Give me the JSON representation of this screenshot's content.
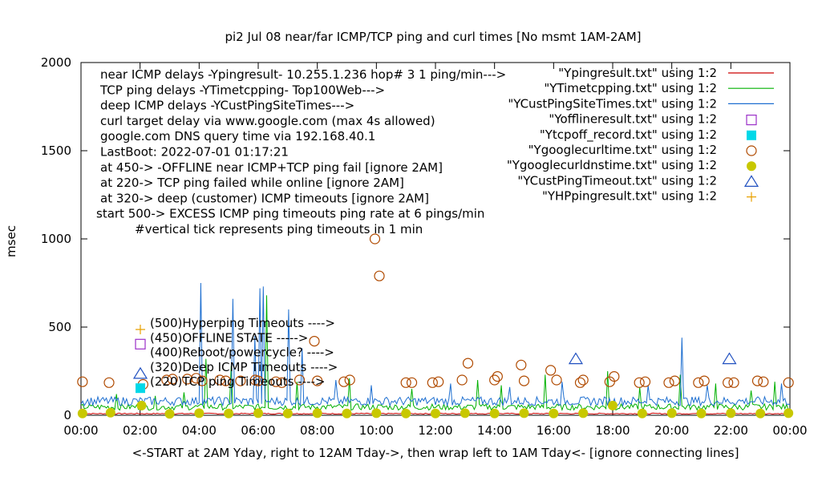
{
  "chart_data": {
    "type": "scatter",
    "title": "pi2  Jul 08  near/far ICMP/TCP ping and curl times [No msmt 1AM-2AM]",
    "xlabel": "<-START at 2AM Yday, right to 12AM Tday->, then wrap left to 1AM Tday<- [ignore connecting lines]",
    "ylabel": "msec",
    "xlim": [
      0,
      24
    ],
    "ylim": [
      0,
      2000
    ],
    "x_ticks": [
      {
        "v": 0,
        "label": "00:00"
      },
      {
        "v": 2,
        "label": "02:00"
      },
      {
        "v": 4,
        "label": "04:00"
      },
      {
        "v": 6,
        "label": "06:00"
      },
      {
        "v": 8,
        "label": "08:00"
      },
      {
        "v": 10,
        "label": "10:00"
      },
      {
        "v": 12,
        "label": "12:00"
      },
      {
        "v": 14,
        "label": "14:00"
      },
      {
        "v": 16,
        "label": "16:00"
      },
      {
        "v": 18,
        "label": "18:00"
      },
      {
        "v": 20,
        "label": "20:00"
      },
      {
        "v": 22,
        "label": "22:00"
      },
      {
        "v": 24,
        "label": "00:00"
      }
    ],
    "y_ticks": [
      {
        "v": 0,
        "label": "0"
      },
      {
        "v": 500,
        "label": "500"
      },
      {
        "v": 1000,
        "label": "1000"
      },
      {
        "v": 1500,
        "label": "1500"
      },
      {
        "v": 2000,
        "label": "2000"
      }
    ],
    "info_lines": [
      "near ICMP delays -Ypingresult- 10.255.1.236 hop# 3 1 ping/min--->",
      "TCP ping delays -YTimetcpping- Top100Web--->",
      "deep ICMP delays -YCustPingSiteTimes--->",
      "curl target delay via www.google.com (max 4s allowed)",
      "google.com DNS query time via 192.168.40.1",
      "LastBoot: 2022-07-01 01:17:21",
      "at 450-> -OFFLINE near ICMP+TCP ping fail [ignore 2AM]",
      "at 220-> TCP ping failed while online [ignore 2AM]",
      "at 320-> deep (customer) ICMP timeouts [ignore 2AM]",
      "start 500-> EXCESS ICMP ping timeouts ping rate at 6 pings/min",
      "#vertical tick represents ping timeouts in 1 min"
    ],
    "legend": [
      {
        "name": "\"Ypingresult.txt\" using 1:2",
        "marker": "line",
        "color": "#cc0000"
      },
      {
        "name": "\"YTimetcpping.txt\" using 1:2",
        "marker": "line",
        "color": "#00b000"
      },
      {
        "name": "\"YCustPingSiteTimes.txt\" using 1:2",
        "marker": "line",
        "color": "#1e6fd0"
      },
      {
        "name": "\"Yofflineresult.txt\" using 1:2",
        "marker": "open-square",
        "color": "#9b30c8"
      },
      {
        "name": "\"Ytcpoff_record.txt\" using 1:2",
        "marker": "filled-square",
        "color": "#00d8e8"
      },
      {
        "name": "\"Ygooglecurltime.txt\" using 1:2",
        "marker": "open-circle",
        "color": "#b04a00"
      },
      {
        "name": "\"Ygooglecurldnstime.txt\" using 1:2",
        "marker": "filled-circle",
        "color": "#c8c800"
      },
      {
        "name": "\"YCustPingTimeout.txt\" using 1:2",
        "marker": "open-triangle",
        "color": "#2050c0"
      },
      {
        "name": "\"YHPpingresult.txt\" using 1:2",
        "marker": "plus",
        "color": "#e8a000"
      }
    ],
    "annotations": [
      {
        "text": "(500)Hyperping Timeouts ---->",
        "marker": "plus",
        "color": "#e8a000"
      },
      {
        "text": "(450)OFFLINE STATE ----->",
        "marker": "open-square",
        "color": "#9b30c8"
      },
      {
        "text": "(400)Reboot/powercycle? ---->",
        "marker": "none",
        "color": "#000000"
      },
      {
        "text": "(320)Deep ICMP Timeouts ---->",
        "marker": "open-triangle",
        "color": "#2050c0"
      },
      {
        "text": "(220)TCP ping Timeouts ---->",
        "marker": "filled-square",
        "color": "#00d8e8"
      }
    ],
    "series": [
      {
        "name": "\"Ypingresult.txt\" using 1:2",
        "color": "#cc0000",
        "style": "line",
        "baseline": 8,
        "noise": 6
      },
      {
        "name": "\"YTimetcpping.txt\" using 1:2",
        "color": "#00b000",
        "style": "line",
        "baseline": 40,
        "noise": 35,
        "spikes": [
          [
            1.2,
            120
          ],
          [
            2.5,
            110
          ],
          [
            3.5,
            130
          ],
          [
            4.2,
            320
          ],
          [
            5.1,
            280
          ],
          [
            6.3,
            680
          ],
          [
            7.3,
            190
          ],
          [
            9.1,
            210
          ],
          [
            11.2,
            150
          ],
          [
            13.4,
            200
          ],
          [
            14.2,
            170
          ],
          [
            15.7,
            230
          ],
          [
            17.8,
            250
          ],
          [
            18.9,
            160
          ],
          [
            20.3,
            230
          ],
          [
            21.5,
            180
          ],
          [
            22.7,
            140
          ],
          [
            23.5,
            190
          ]
        ]
      },
      {
        "name": "\"YCustPingSiteTimes.txt\" using 1:2",
        "color": "#1e6fd0",
        "style": "line",
        "baseline": 70,
        "noise": 50,
        "spikes": [
          [
            4.05,
            750
          ],
          [
            5.15,
            660
          ],
          [
            5.9,
            450
          ],
          [
            6.05,
            720
          ],
          [
            6.15,
            730
          ],
          [
            7.0,
            600
          ],
          [
            7.5,
            380
          ],
          [
            8.6,
            200
          ],
          [
            9.8,
            170
          ],
          [
            12.5,
            180
          ],
          [
            14.5,
            160
          ],
          [
            16.3,
            190
          ],
          [
            19.2,
            170
          ],
          [
            20.35,
            440
          ],
          [
            21.2,
            170
          ],
          [
            23.7,
            180
          ]
        ]
      },
      {
        "name": "\"Ygooglecurltime.txt\" using 1:2",
        "color": "#b04a00",
        "style": "open-circle",
        "points": [
          [
            0.05,
            190
          ],
          [
            0.95,
            185
          ],
          [
            2.1,
            175
          ],
          [
            2.9,
            200
          ],
          [
            3.1,
            205
          ],
          [
            3.6,
            205
          ],
          [
            3.9,
            210
          ],
          [
            4.1,
            195
          ],
          [
            4.7,
            200
          ],
          [
            4.9,
            195
          ],
          [
            5.4,
            195
          ],
          [
            5.9,
            200
          ],
          [
            6.0,
            195
          ],
          [
            6.6,
            190
          ],
          [
            6.8,
            185
          ],
          [
            7.4,
            200
          ],
          [
            7.9,
            420
          ],
          [
            8.0,
            195
          ],
          [
            8.9,
            190
          ],
          [
            9.1,
            200
          ],
          [
            9.95,
            1000
          ],
          [
            10.1,
            790
          ],
          [
            11.0,
            185
          ],
          [
            11.2,
            185
          ],
          [
            11.9,
            185
          ],
          [
            12.1,
            190
          ],
          [
            12.9,
            200
          ],
          [
            13.1,
            295
          ],
          [
            14.0,
            200
          ],
          [
            14.1,
            220
          ],
          [
            14.9,
            285
          ],
          [
            15.0,
            195
          ],
          [
            15.9,
            255
          ],
          [
            16.1,
            200
          ],
          [
            16.9,
            185
          ],
          [
            17.0,
            200
          ],
          [
            17.9,
            190
          ],
          [
            18.05,
            220
          ],
          [
            18.9,
            185
          ],
          [
            19.1,
            190
          ],
          [
            19.9,
            185
          ],
          [
            20.1,
            195
          ],
          [
            20.9,
            185
          ],
          [
            21.1,
            195
          ],
          [
            21.9,
            185
          ],
          [
            22.1,
            185
          ],
          [
            22.9,
            195
          ],
          [
            23.1,
            190
          ],
          [
            23.95,
            185
          ]
        ]
      },
      {
        "name": "\"Ygooglecurldnstime.txt\" using 1:2",
        "color": "#c8c800",
        "style": "filled-circle",
        "points": [
          [
            0.05,
            10
          ],
          [
            1.0,
            15
          ],
          [
            2.05,
            55
          ],
          [
            3.0,
            8
          ],
          [
            4.0,
            12
          ],
          [
            5.0,
            10
          ],
          [
            6.0,
            12
          ],
          [
            7.0,
            10
          ],
          [
            8.0,
            12
          ],
          [
            9.0,
            10
          ],
          [
            10.0,
            12
          ],
          [
            11.0,
            10
          ],
          [
            12.0,
            10
          ],
          [
            13.0,
            12
          ],
          [
            14.0,
            10
          ],
          [
            15.0,
            12
          ],
          [
            16.0,
            10
          ],
          [
            17.0,
            12
          ],
          [
            18.0,
            55
          ],
          [
            19.0,
            10
          ],
          [
            20.0,
            12
          ],
          [
            21.0,
            10
          ],
          [
            22.0,
            12
          ],
          [
            23.0,
            10
          ],
          [
            23.95,
            12
          ]
        ]
      },
      {
        "name": "\"YCustPingTimeout.txt\" using 1:2",
        "color": "#2050c0",
        "style": "open-triangle",
        "points": [
          [
            16.75,
            320
          ],
          [
            21.95,
            320
          ]
        ]
      }
    ]
  }
}
